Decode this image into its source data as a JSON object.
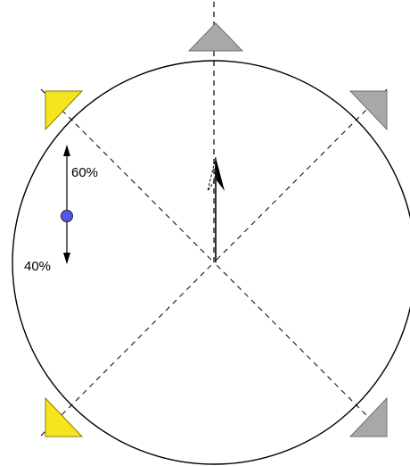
{
  "colors": {
    "active_speaker": "#f5e51f",
    "inactive_speaker": "#a8a8a8",
    "handle": "#5555ee",
    "line": "#000000"
  },
  "speakers": [
    {
      "name": "center-front",
      "active": false
    },
    {
      "name": "front-left",
      "active": true
    },
    {
      "name": "front-right",
      "active": false
    },
    {
      "name": "rear-left",
      "active": true
    },
    {
      "name": "rear-right",
      "active": false
    }
  ],
  "balance": {
    "front_label": "60%",
    "rear_label": "40%",
    "front_fraction": 0.6,
    "rear_fraction": 0.4
  },
  "icons": {
    "direction": "listener-direction-arrow-icon",
    "balance_handle": "balance-handle-icon"
  }
}
